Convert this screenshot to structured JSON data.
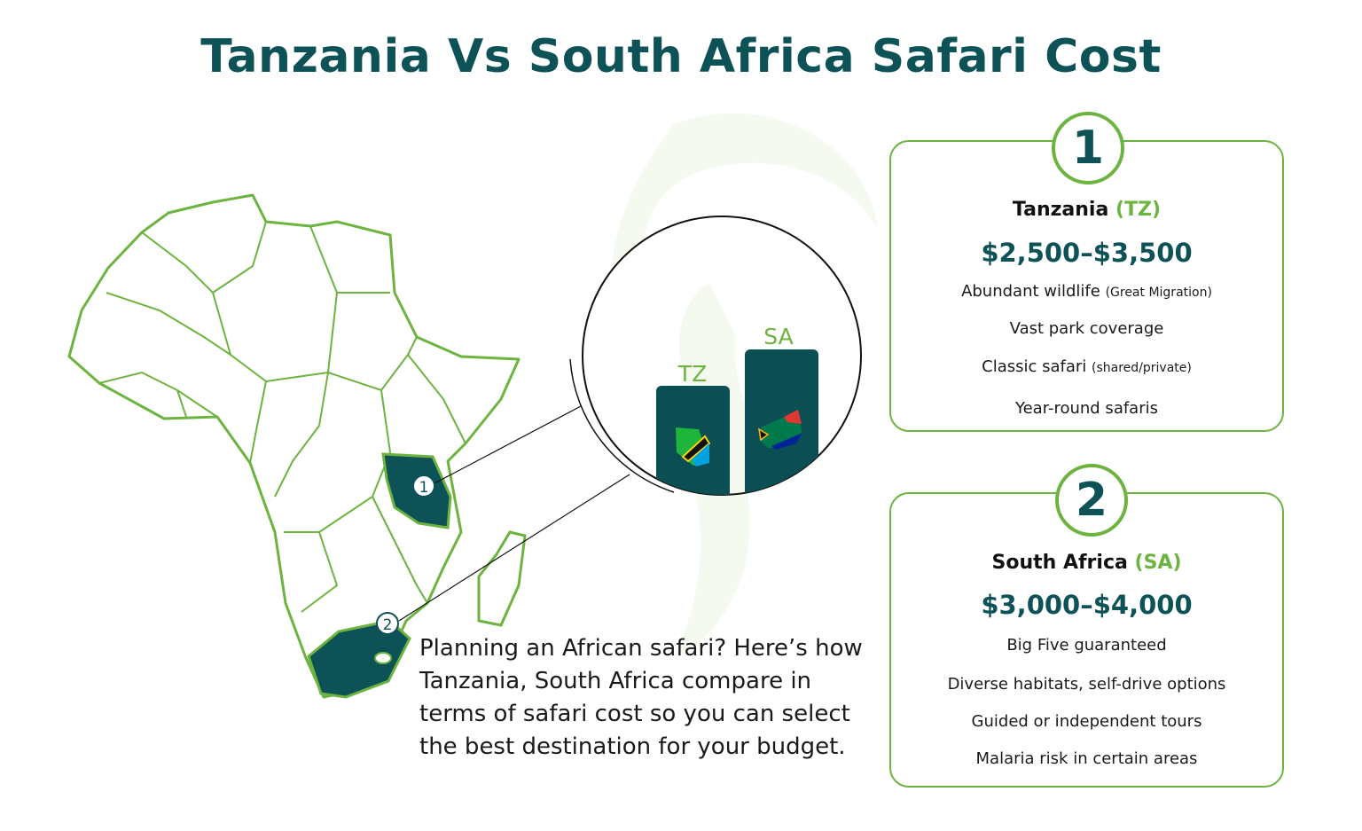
{
  "title": "Tanzania Vs South Africa Safari Cost",
  "colors": {
    "primary": "#0d5257",
    "accent": "#6db33f",
    "bar": "#0b4f55"
  },
  "map": {
    "markers": [
      "1",
      "2"
    ]
  },
  "comparison_bars": [
    {
      "label": "TZ",
      "icon": "tanzania-flag-map-icon"
    },
    {
      "label": "SA",
      "icon": "south-africa-flag-map-icon"
    }
  ],
  "intro": "Planning an African safari? Here’s how Tanzania, South Africa compare in terms of safari cost so you can select the best destination for your budget.",
  "cards": [
    {
      "number": "1",
      "country": "Tanzania",
      "abbr": "(TZ)",
      "price": "$2,500–$3,500",
      "features": [
        {
          "text": "Abundant wildlife",
          "note": "(Great Migration)"
        },
        {
          "text": "Vast park coverage",
          "note": ""
        },
        {
          "text": "Classic safari",
          "note": "(shared/private)"
        },
        {
          "text": "Year-round safaris",
          "note": ""
        }
      ]
    },
    {
      "number": "2",
      "country": "South Africa",
      "abbr": "(SA)",
      "price": "$3,000–$4,000",
      "features": [
        {
          "text": "Big Five guaranteed",
          "note": ""
        },
        {
          "text": "Diverse habitats, self-drive options",
          "note": ""
        },
        {
          "text": "Guided or independent tours",
          "note": ""
        },
        {
          "text": "Malaria risk in certain areas",
          "note": ""
        }
      ]
    }
  ]
}
